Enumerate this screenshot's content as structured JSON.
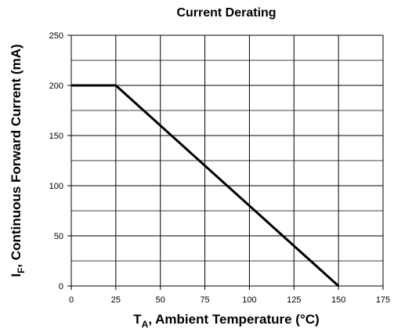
{
  "chart_data": {
    "type": "line",
    "title": "Current Derating",
    "xlabel": {
      "prefix": "T",
      "subscript": "A",
      "rest": ", Ambient Temperature (°C)"
    },
    "ylabel": {
      "prefix": "I",
      "subscript": "F",
      "rest": ", Continuous Forward Current (mA)"
    },
    "xlim": [
      0,
      175
    ],
    "ylim": [
      0,
      250
    ],
    "x_ticks": [
      0,
      25,
      50,
      75,
      100,
      125,
      150,
      175
    ],
    "y_ticks": [
      0,
      50,
      100,
      150,
      200,
      250
    ],
    "x_tick_labels": [
      "0",
      "25",
      "50",
      "75",
      "100",
      "125",
      "150",
      "175"
    ],
    "y_tick_labels": [
      "0",
      "50",
      "100",
      "150",
      "200",
      "250"
    ],
    "y_minor_gridlines": [
      25,
      75,
      125,
      175,
      225
    ],
    "grid": true,
    "series": [
      {
        "x": [
          0,
          25,
          150
        ],
        "y": [
          200,
          200,
          0
        ],
        "color": "#000000"
      }
    ]
  }
}
